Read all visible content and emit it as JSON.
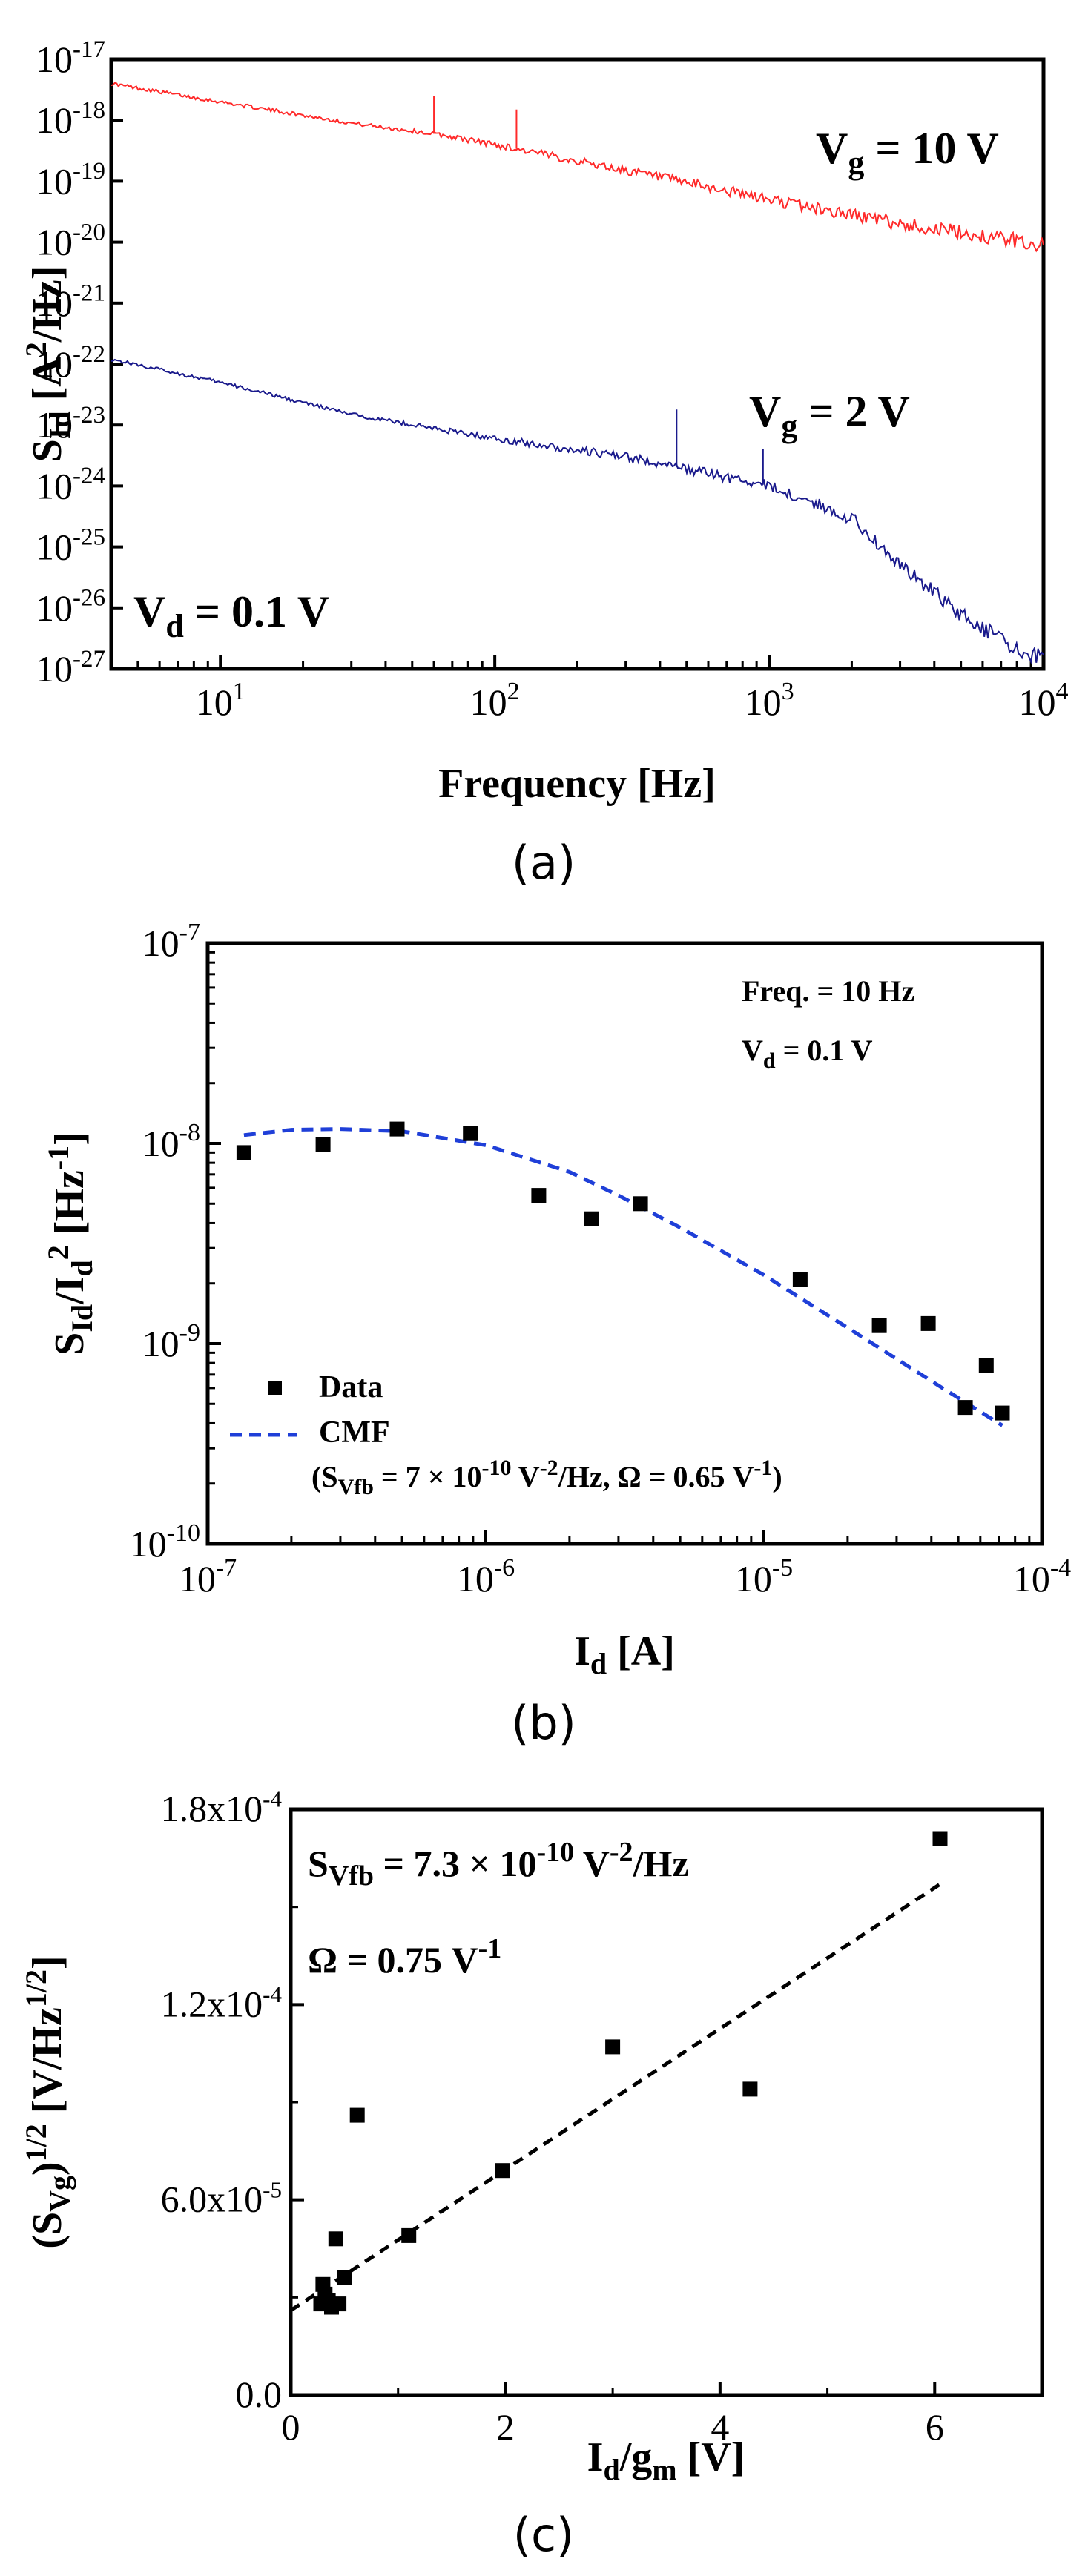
{
  "chart_data": [
    {
      "type": "line",
      "panel": "a",
      "caption": "(a)",
      "xlabel": "Frequency [Hz]",
      "ylabel_main": "S",
      "ylabel_sub": "Id",
      "ylabel_rest": " [A",
      "ylabel_sup": "2",
      "ylabel_end": "/Hz]",
      "xscale": "log",
      "yscale": "log",
      "xlim": [
        4,
        10000
      ],
      "ylim": [
        1e-27,
        1e-17
      ],
      "xticks": [
        {
          "base": "10",
          "exp": "1",
          "v": 10
        },
        {
          "base": "10",
          "exp": "2",
          "v": 100
        },
        {
          "base": "10",
          "exp": "3",
          "v": 1000
        },
        {
          "base": "10",
          "exp": "4",
          "v": 10000
        }
      ],
      "yticks": [
        {
          "base": "10",
          "exp": "-17",
          "v": 1e-17
        },
        {
          "base": "10",
          "exp": "-18",
          "v": 1e-18
        },
        {
          "base": "10",
          "exp": "-19",
          "v": 1e-19
        },
        {
          "base": "10",
          "exp": "-20",
          "v": 1e-20
        },
        {
          "base": "10",
          "exp": "-21",
          "v": 1e-21
        },
        {
          "base": "10",
          "exp": "-22",
          "v": 1e-22
        },
        {
          "base": "10",
          "exp": "-23",
          "v": 1e-23
        },
        {
          "base": "10",
          "exp": "-24",
          "v": 1e-24
        },
        {
          "base": "10",
          "exp": "-25",
          "v": 1e-25
        },
        {
          "base": "10",
          "exp": "-26",
          "v": 1e-26
        },
        {
          "base": "10",
          "exp": "-27",
          "v": 1e-27
        }
      ],
      "series": [
        {
          "name": "Vg = 10 V",
          "color": "#ff2a2a",
          "x": [
            4,
            10,
            30,
            60,
            100,
            300,
            1000,
            3000,
            10000
          ],
          "y": [
            4e-18,
            2e-18,
            9e-19,
            6e-19,
            4e-19,
            1.5e-19,
            5e-20,
            2e-20,
            9e-21
          ],
          "spikes": [
            {
              "x": 60,
              "y": 2.5e-18
            },
            {
              "x": 120,
              "y": 1.5e-18
            }
          ]
        },
        {
          "name": "Vg = 2 V",
          "color": "#1a1a8c",
          "x": [
            4,
            10,
            30,
            100,
            300,
            1000,
            2000,
            3000,
            5000,
            8000,
            10000
          ],
          "y": [
            1.2e-22,
            5e-23,
            1.5e-23,
            6e-24,
            3e-24,
            1e-24,
            3e-25,
            5e-26,
            8e-27,
            2e-27,
            1.5e-27
          ],
          "spikes": [
            {
              "x": 460,
              "y": 1.8e-23
            },
            {
              "x": 950,
              "y": 4e-24
            }
          ]
        }
      ],
      "annotations": [
        {
          "main": "V",
          "sub": "g",
          "rest": " = 10 V"
        },
        {
          "main": "V",
          "sub": "g",
          "rest": " = 2 V"
        },
        {
          "main": "V",
          "sub": "d",
          "rest": " = 0.1 V"
        }
      ]
    },
    {
      "type": "scatter",
      "panel": "b",
      "caption": "(b)",
      "xlabel_main": "I",
      "xlabel_sub": "d",
      "xlabel_rest": " [A]",
      "ylabel_parts": [
        "S",
        "Id",
        "/I",
        "d",
        "2",
        " [Hz",
        "-1",
        "]"
      ],
      "xscale": "log",
      "yscale": "log",
      "xlim": [
        1e-07,
        0.0001
      ],
      "ylim": [
        1e-10,
        1e-07
      ],
      "xticks": [
        {
          "base": "10",
          "exp": "-7",
          "v": 1e-07
        },
        {
          "base": "10",
          "exp": "-6",
          "v": 1e-06
        },
        {
          "base": "10",
          "exp": "-5",
          "v": 1e-05
        },
        {
          "base": "10",
          "exp": "-4",
          "v": 0.0001
        }
      ],
      "yticks": [
        {
          "base": "10",
          "exp": "-7",
          "v": 1e-07
        },
        {
          "base": "10",
          "exp": "-8",
          "v": 1e-08
        },
        {
          "base": "10",
          "exp": "-9",
          "v": 1e-09
        },
        {
          "base": "10",
          "exp": "-10",
          "v": 1e-10
        }
      ],
      "series": [
        {
          "name": "Data",
          "marker": "square",
          "color": "#000000",
          "x": [
            1.35e-07,
            2.6e-07,
            4.8e-07,
            8.8e-07,
            1.55e-06,
            2.4e-06,
            3.6e-06,
            1.35e-05,
            2.6e-05,
            3.9e-05,
            5.3e-05,
            6.3e-05,
            7.2e-05
          ],
          "y": [
            9e-09,
            9.9e-09,
            1.18e-08,
            1.12e-08,
            5.5e-09,
            4.2e-09,
            5e-09,
            2.1e-09,
            1.23e-09,
            1.26e-09,
            4.8e-10,
            7.8e-10,
            4.5e-10
          ]
        },
        {
          "name": "CMF",
          "line": "dashed",
          "color": "#1f3fd8",
          "x": [
            1.35e-07,
            2e-07,
            3e-07,
            5e-07,
            1e-06,
            2e-06,
            3e-06,
            5e-06,
            1e-05,
            2e-05,
            4e-05,
            7.2e-05
          ],
          "y": [
            1.1e-08,
            1.17e-08,
            1.18e-08,
            1.15e-08,
            9.8e-09,
            7.2e-09,
            5.5e-09,
            3.8e-09,
            2.2e-09,
            1.2e-09,
            6.5e-10,
            3.9e-10
          ]
        }
      ],
      "legend": {
        "data_label": "Data",
        "cmf_label": "CMF",
        "param_parts": [
          "(S",
          "Vfb",
          " = 7 × 10",
          "-10",
          " V",
          "-2",
          "/Hz, Ω = 0.65 V",
          "-1",
          ")"
        ]
      },
      "annotations": {
        "freq": "Freq. = 10 Hz",
        "vd_main": "V",
        "vd_sub": "d",
        "vd_rest": " = 0.1 V"
      }
    },
    {
      "type": "scatter",
      "panel": "c",
      "caption": "(c)",
      "xlabel_parts": [
        "I",
        "d",
        "/g",
        "m",
        " [V]"
      ],
      "ylabel_parts": [
        "(S",
        "Vg",
        ")",
        "1/2",
        " [V/Hz",
        "1/2",
        "]"
      ],
      "xlim": [
        0,
        7
      ],
      "ylim": [
        0,
        0.00018
      ],
      "xticks": [
        {
          "label": "0",
          "v": 0
        },
        {
          "label": "2",
          "v": 2
        },
        {
          "label": "4",
          "v": 4
        },
        {
          "label": "6",
          "v": 6
        }
      ],
      "yticks": [
        {
          "label": "0.0",
          "v": 0
        },
        {
          "label": "6.0x10",
          "exp": "-5",
          "v": 6e-05
        },
        {
          "label": "1.2x10",
          "exp": "-4",
          "v": 0.00012
        },
        {
          "label": "1.8x10",
          "exp": "-4",
          "v": 0.00018
        }
      ],
      "series": [
        {
          "name": "Data",
          "marker": "square",
          "color": "#000000",
          "x": [
            0.28,
            0.3,
            0.32,
            0.35,
            0.38,
            0.42,
            0.45,
            0.5,
            0.62,
            1.1,
            1.97,
            3.0,
            4.28,
            6.05
          ],
          "y": [
            2.8e-05,
            3.4e-05,
            3.1e-05,
            2.9e-05,
            2.7e-05,
            4.8e-05,
            2.8e-05,
            3.6e-05,
            8.6e-05,
            4.9e-05,
            6.9e-05,
            0.000107,
            9.4e-05,
            0.000171
          ]
        },
        {
          "name": "Fit",
          "line": "dashed",
          "color": "#000000",
          "x": [
            0,
            6.05
          ],
          "y": [
            2.6e-05,
            0.000157
          ]
        }
      ],
      "annotations": {
        "svfb_parts": [
          "S",
          "Vfb",
          " = 7.3 × 10",
          "-10",
          " V",
          "-2",
          "/Hz"
        ],
        "omega_parts": [
          "Ω = 0.75 V",
          "-1"
        ]
      }
    }
  ]
}
